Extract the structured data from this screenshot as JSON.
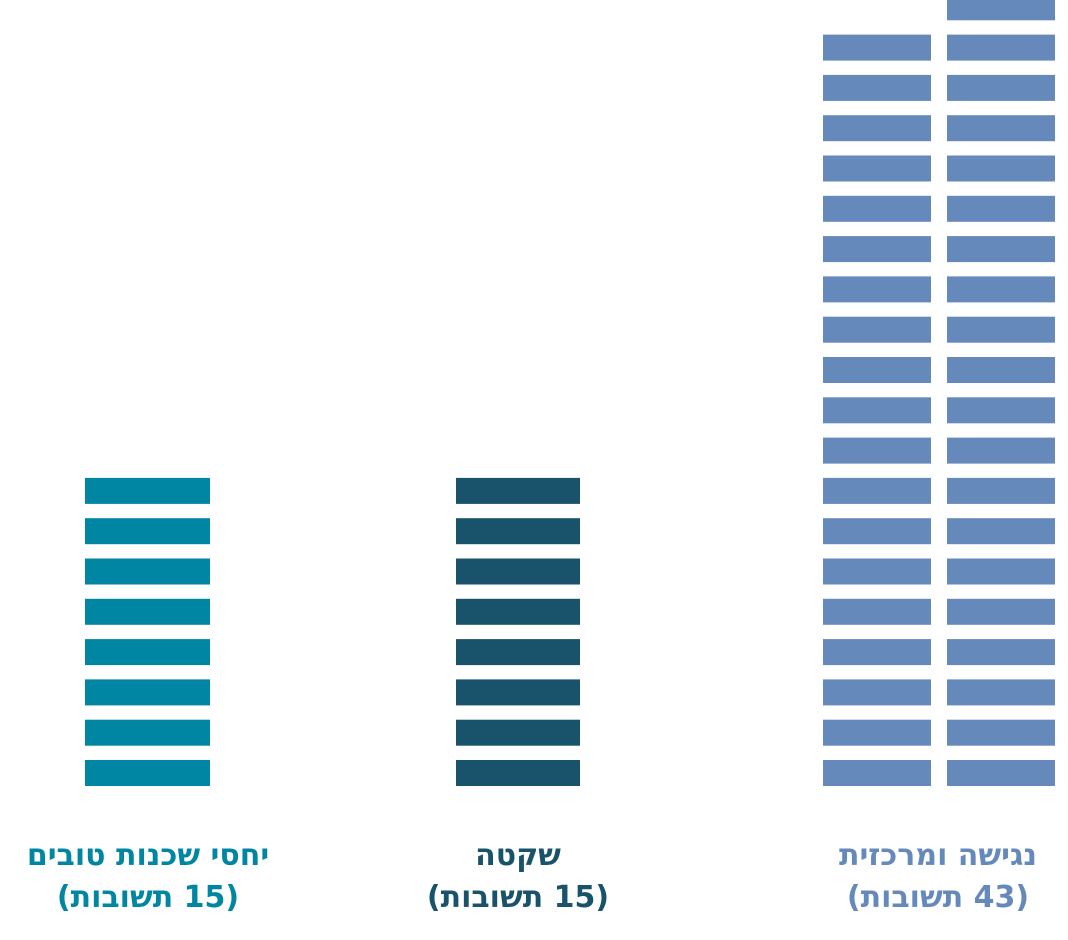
{
  "chart_data": {
    "type": "bar",
    "subtype": "unit-pictogram",
    "categories": [
      {
        "name": "יחסי שכנות טובים",
        "count_label": "(15 תשובות)",
        "value": 15,
        "color": "#0086a3"
      },
      {
        "name": "שקטה",
        "count_label": "(15 תשובות)",
        "value": 15,
        "color": "#19536b"
      },
      {
        "name": "נגישה ומרכזית",
        "count_label": "(43 תשובות)",
        "value": 43,
        "color": "#6689bb"
      }
    ],
    "title": "",
    "xlabel": "",
    "ylabel": ""
  }
}
